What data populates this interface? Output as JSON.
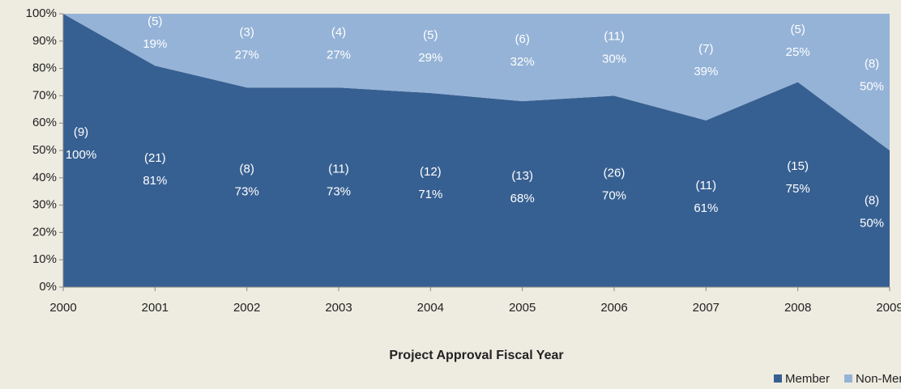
{
  "chart_data": {
    "type": "stacked_area",
    "x_label": "Project Approval Fiscal Year",
    "x": [
      2000,
      2001,
      2002,
      2003,
      2004,
      2005,
      2006,
      2007,
      2008,
      2009
    ],
    "xlim": [
      2000,
      2009
    ],
    "xticks": [
      2000,
      2001,
      2002,
      2003,
      2004,
      2005,
      2006,
      2007,
      2008,
      2009
    ],
    "ylim": [
      0,
      100
    ],
    "yticks": [
      {
        "value": 0,
        "label": "0%"
      },
      {
        "value": 10,
        "label": "10%"
      },
      {
        "value": 20,
        "label": "20%"
      },
      {
        "value": 30,
        "label": "30%"
      },
      {
        "value": 40,
        "label": "40%"
      },
      {
        "value": 50,
        "label": "50%"
      },
      {
        "value": 60,
        "label": "60%"
      },
      {
        "value": 70,
        "label": "70%"
      },
      {
        "value": 80,
        "label": "80%"
      },
      {
        "value": 90,
        "label": "90%"
      },
      {
        "value": 100,
        "label": "100%"
      }
    ],
    "legend": "bottom-right",
    "series": [
      {
        "name": "Member",
        "color": "#376092",
        "values": [
          100,
          81,
          73,
          73,
          71,
          68,
          70,
          61,
          75,
          50
        ],
        "value_labels": [
          "100%",
          "81%",
          "73%",
          "73%",
          "71%",
          "68%",
          "70%",
          "61%",
          "75%",
          "50%"
        ],
        "counts": [
          9,
          21,
          8,
          11,
          12,
          13,
          26,
          11,
          15,
          8
        ],
        "count_labels": [
          "(9)",
          "(21)",
          "(8)",
          "(11)",
          "(12)",
          "(13)",
          "(26)",
          "(11)",
          "(15)",
          "(8)"
        ]
      },
      {
        "name": "Non-Member",
        "color": "#95b3d7",
        "values": [
          0,
          19,
          27,
          27,
          29,
          32,
          30,
          39,
          25,
          50
        ],
        "value_labels": [
          null,
          "19%",
          "27%",
          "27%",
          "29%",
          "32%",
          "30%",
          "39%",
          "25%",
          "50%"
        ],
        "counts": [
          null,
          5,
          3,
          4,
          5,
          6,
          11,
          7,
          5,
          8
        ],
        "count_labels": [
          null,
          "(5)",
          "(3)",
          "(4)",
          "(5)",
          "(6)",
          "(11)",
          "(7)",
          "(5)",
          "(8)"
        ]
      }
    ]
  }
}
